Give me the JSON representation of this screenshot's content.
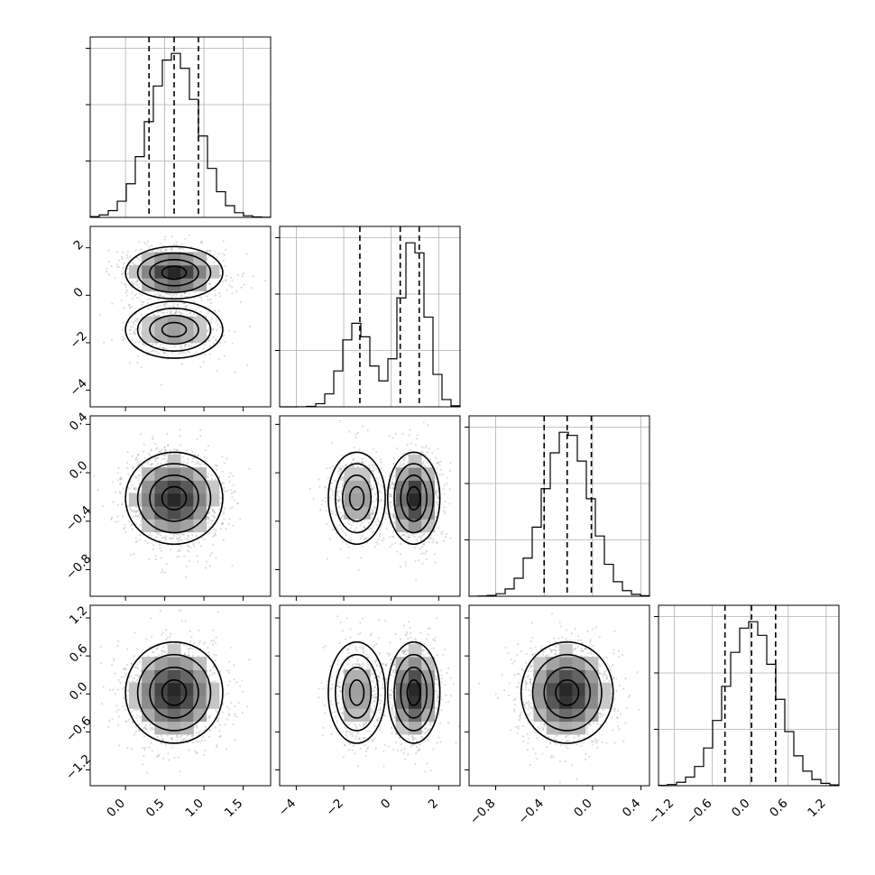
{
  "chart_data": {
    "type": "corner",
    "n_params": 4,
    "title": "",
    "params": [
      {
        "mean": 0.62,
        "std": 0.31,
        "modes": [
          [
            1.0,
            0.62,
            0.31
          ]
        ],
        "range": [
          -0.45,
          1.85
        ],
        "quantiles": [
          0.3,
          0.62,
          0.93
        ],
        "ticks": [
          0.0,
          0.5,
          1.0,
          1.5
        ],
        "tick_labels": [
          "0.0",
          "0.5",
          "1.0",
          "1.5"
        ]
      },
      {
        "mean": 0.2,
        "std": 1.35,
        "modes": [
          [
            0.35,
            -1.45,
            0.6
          ],
          [
            0.65,
            0.95,
            0.55
          ]
        ],
        "range": [
          -4.7,
          2.9
        ],
        "quantiles": [
          -1.32,
          0.38,
          1.18
        ],
        "ticks": [
          -4,
          -2,
          0,
          2
        ],
        "tick_labels": [
          "−4",
          "−2",
          "0",
          "2"
        ]
      },
      {
        "mean": -0.21,
        "std": 0.19,
        "modes": [
          [
            1.0,
            -0.21,
            0.19
          ]
        ],
        "range": [
          -1.02,
          0.47
        ],
        "quantiles": [
          -0.4,
          -0.21,
          -0.01
        ],
        "ticks": [
          -0.8,
          -0.4,
          0.0,
          0.4
        ],
        "tick_labels": [
          "−0.8",
          "−0.4",
          "0.0",
          "0.4"
        ]
      },
      {
        "mean": 0.02,
        "std": 0.4,
        "modes": [
          [
            1.0,
            0.02,
            0.4
          ]
        ],
        "range": [
          -1.45,
          1.4
        ],
        "quantiles": [
          -0.4,
          0.02,
          0.4
        ],
        "ticks": [
          -1.2,
          -0.6,
          0.0,
          0.6,
          1.2
        ],
        "tick_labels": [
          "−1.2",
          "−0.6",
          "0.0",
          "0.6",
          "1.2"
        ]
      }
    ],
    "hist_bins": 20,
    "contour_levels": [
      "0.5σ",
      "1σ",
      "1.5σ",
      "2σ"
    ],
    "scatter_points": 1500,
    "grid": true,
    "colors": {
      "hist": "#000000",
      "points": "#9a9a9a",
      "density": "#000000"
    }
  }
}
